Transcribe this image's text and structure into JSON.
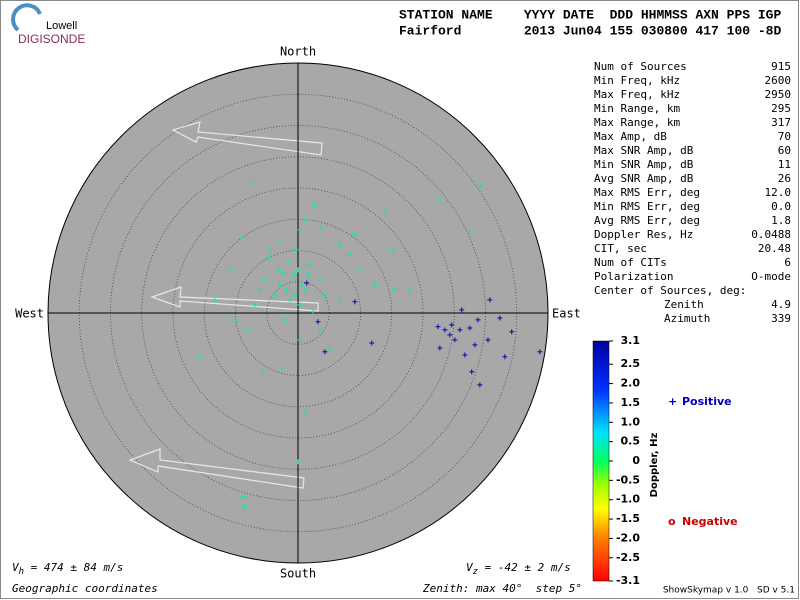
{
  "header": {
    "logo_top": "Lowell",
    "logo_bottom": "DIGISONDE",
    "labels": "STATION NAME    YYYY DATE  DDD HHMMSS AXN PPS IGP",
    "values": "Fairford        2013 Jun04 155 030800 417 100 -8D"
  },
  "directions": {
    "north": "North",
    "south": "South",
    "east": "East",
    "west": "West"
  },
  "stats": [
    {
      "label": "Num of Sources",
      "value": "915"
    },
    {
      "label": "Min Freq, kHz",
      "value": "2600"
    },
    {
      "label": "Max Freq, kHz",
      "value": "2950"
    },
    {
      "label": "Min Range, km",
      "value": "295"
    },
    {
      "label": "Max Range, km",
      "value": "317"
    },
    {
      "label": "Max Amp, dB",
      "value": "70"
    },
    {
      "label": "Max SNR Amp, dB",
      "value": "60"
    },
    {
      "label": "Min SNR Amp, dB",
      "value": "11"
    },
    {
      "label": "Avg SNR Amp, dB",
      "value": "26"
    },
    {
      "label": "Max RMS Err, deg",
      "value": "12.0"
    },
    {
      "label": "Min RMS Err, deg",
      "value": "0.0"
    },
    {
      "label": "Avg RMS Err, deg",
      "value": "1.8"
    },
    {
      "label": "Doppler Res, Hz",
      "value": "0.0488"
    },
    {
      "label": "CIT, sec",
      "value": "20.48"
    },
    {
      "label": "Num of CITs",
      "value": "6"
    },
    {
      "label": "Polarization",
      "value": "O-mode"
    }
  ],
  "center": {
    "title": "Center of Sources, deg:",
    "rows": [
      {
        "label": "Zenith",
        "value": "4.9"
      },
      {
        "label": "Azimuth",
        "value": "339"
      }
    ]
  },
  "footer": {
    "vh": {
      "symbol": "V",
      "sub": "h",
      "text": " = 474 ± 84 m/s"
    },
    "vz": {
      "symbol": "V",
      "sub": "z",
      "text": " = -42 ± 2 m/s"
    },
    "coords": "Geographic coordinates",
    "zenith": "Zenith: max 40°  step 5°",
    "version": "ShowSkymap v 1.0   SD v 5.1"
  },
  "chart_data": {
    "type": "skymap",
    "rlim": [
      0,
      40
    ],
    "rticks": [
      5,
      10,
      15,
      20,
      25,
      30,
      35
    ],
    "colorbar": {
      "label": "Doppler, Hz",
      "clim": [
        -3.1,
        3.1
      ],
      "ticks": [
        3.1,
        2.5,
        {
          "value": 2,
          "label": "2.0"
        },
        1.5,
        {
          "value": 1,
          "label": "1.0"
        },
        0.5,
        0,
        -0.5,
        {
          "value": -1,
          "label": "-1.0"
        },
        -1.5,
        {
          "value": -2,
          "label": "-2.0"
        },
        -2.5,
        -3.1
      ]
    },
    "series": [
      {
        "name": "Positive",
        "marker": "+",
        "color": "#0000c0",
        "x": [
          -7.5,
          1.0,
          2.7,
          3.8,
          -2.9,
          -9.0,
          0.3,
          9.1,
          13.9,
          15.2,
          9.9,
          6.7,
          -10.9,
          -13.3,
          -8.0,
          -15.7,
          -5.8,
          -2.6,
          0.3,
          3.5,
          5.1,
          1.1,
          0.0,
          -8.8,
          -8.5,
          -4.5,
          -1.6,
          -0.5,
          1.1,
          -3.7,
          -1.3,
          1.9,
          3.5,
          -5.3,
          -6.9,
          -2.1,
          8.3,
          12.3,
          15.5,
          17.9,
          -10.1,
          2.4,
          6.7,
          29.1,
          22.4,
          27.5,
          -0.3,
          -2.4,
          0.3,
          -4.8,
          -1.0,
          0.0,
          -2.9,
          0.6,
          -1.8,
          -0.5,
          -3.2,
          1.6,
          -6.1,
          4.3,
          22.4,
          23.5,
          24.6,
          25.9,
          27.5,
          28.8,
          30.7,
          32.3,
          34.2,
          25.1,
          26.7,
          29.1,
          27.8,
          33.1,
          38.7,
          30.4,
          22.7,
          11.8,
          9.1,
          1.4,
          4.3,
          3.2,
          26.2,
          28.3,
          24.3
        ],
        "y": [
          21.0,
          14.9,
          17.3,
          13.6,
          11.7,
          12.0,
          13.3,
          12.5,
          16.2,
          10.1,
          6.9,
          2.1,
          6.9,
          2.1,
          -2.7,
          -6.9,
          -9.4,
          -8.8,
          -4.3,
          -2.7,
          -5.9,
          -15.8,
          -23.8,
          -29.4,
          -31.0,
          10.1,
          8.2,
          6.1,
          3.7,
          2.9,
          2.1,
          7.7,
          5.3,
          5.3,
          1.3,
          -1.1,
          9.3,
          4.5,
          3.7,
          3.7,
          -1.1,
          0.2,
          10.9,
          20.3,
          18.1,
          13.0,
          10.1,
          6.4,
          1.3,
          8.8,
          5.0,
          6.9,
          4.5,
          4.5,
          3.7,
          2.9,
          6.9,
          6.1,
          3.7,
          2.9,
          -2.2,
          -2.7,
          -1.9,
          -2.7,
          -2.4,
          -1.1,
          2.1,
          -0.8,
          -3.0,
          -4.3,
          -6.7,
          -11.5,
          -9.4,
          -7.0,
          -6.2,
          -4.3,
          -5.6,
          -4.8,
          1.8,
          4.8,
          -6.2,
          -1.4,
          0.5,
          -5.1,
          -3.5
        ],
        "doppler": [
          0.3,
          0.3,
          0.3,
          0.3,
          0.3,
          0.3,
          0.3,
          0.3,
          0.3,
          0.3,
          0.3,
          0.3,
          0.3,
          0.3,
          0.3,
          0.3,
          0.3,
          0.3,
          0.3,
          0.3,
          0.3,
          0.3,
          0.3,
          0.3,
          0.3,
          0.3,
          0.3,
          0.3,
          0.3,
          0.3,
          0.3,
          0.3,
          0.3,
          0.3,
          0.3,
          0.3,
          0.3,
          0.3,
          0.3,
          0.3,
          0.3,
          0.3,
          0.3,
          0.3,
          0.3,
          0.3,
          0.3,
          0.3,
          0.3,
          0.3,
          0.3,
          0.3,
          0.3,
          0.3,
          0.3,
          0.3,
          0.3,
          0.3,
          0.3,
          0.3,
          2.9,
          2.9,
          2.9,
          2.9,
          2.9,
          2.9,
          2.9,
          2.9,
          2.9,
          2.9,
          2.9,
          2.9,
          2.9,
          2.9,
          2.9,
          2.9,
          2.9,
          2.9,
          2.9,
          2.9,
          2.9,
          2.9,
          2.9,
          2.9,
          2.9
        ]
      },
      {
        "name": "Negative",
        "marker": "o",
        "color": "#d00000",
        "x": [],
        "y": [],
        "doppler": []
      }
    ]
  }
}
